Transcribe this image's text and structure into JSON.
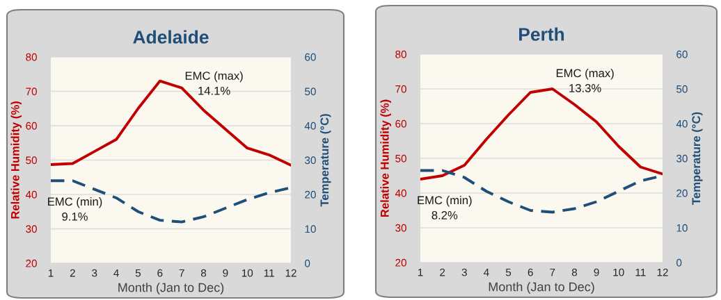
{
  "chart_data": [
    {
      "type": "line",
      "title": "Adelaide",
      "xlabel": "Month (Jan to Dec)",
      "ylabel": "Relative Humidity (%)",
      "y2label": "Temperature (°C)",
      "x": [
        1,
        2,
        3,
        4,
        5,
        6,
        7,
        8,
        9,
        10,
        11,
        12
      ],
      "series": [
        {
          "color": "#c00000",
          "values": [
            48.7,
            49,
            52.5,
            56,
            65,
            73,
            71,
            64.5,
            59,
            53.5,
            51.5,
            48.5
          ]
        },
        {
          "color": "#1f4e79",
          "axis": "y2",
          "line_style": "dashed",
          "values": [
            24,
            24,
            21.5,
            19,
            15,
            12.5,
            12,
            13.5,
            16,
            18.5,
            20.5,
            22
          ]
        }
      ],
      "xlim": [
        1,
        12
      ],
      "xticks": [
        1,
        2,
        3,
        4,
        5,
        6,
        7,
        8,
        9,
        10,
        11,
        12
      ],
      "ylim": [
        20,
        80
      ],
      "yticks": [
        20,
        30,
        40,
        50,
        60,
        70,
        80
      ],
      "y2lim": [
        0,
        60
      ],
      "y2ticks": [
        0,
        10,
        20,
        30,
        40,
        50,
        60
      ],
      "grid": "y",
      "line_style": "solid",
      "marker": "none",
      "annotations": [
        "EMC (max)\n14.1%",
        "EMC (min)\n9.1%"
      ]
    },
    {
      "type": "line",
      "title": "Perth",
      "xlabel": "Month (Jan to Dec)",
      "ylabel": "Relative Humidity (%)",
      "y2label": "Temperature (°C)",
      "x": [
        1,
        2,
        3,
        4,
        5,
        6,
        7,
        8,
        9,
        10,
        11,
        12
      ],
      "series": [
        {
          "color": "#c00000",
          "values": [
            44,
            45,
            48,
            55.5,
            62.5,
            69,
            70,
            65.5,
            60.5,
            53.5,
            47.5,
            45.5
          ]
        },
        {
          "color": "#1f4e79",
          "axis": "y2",
          "line_style": "dashed",
          "values": [
            26.5,
            26.5,
            24.5,
            20.5,
            17.5,
            15,
            14.5,
            15.5,
            17.5,
            20.5,
            23.5,
            25
          ]
        }
      ],
      "xlim": [
        1,
        12
      ],
      "xticks": [
        1,
        2,
        3,
        4,
        5,
        6,
        7,
        8,
        9,
        10,
        11,
        12
      ],
      "ylim": [
        20,
        80
      ],
      "yticks": [
        20,
        30,
        40,
        50,
        60,
        70,
        80
      ],
      "y2lim": [
        0,
        60
      ],
      "y2ticks": [
        0,
        10,
        20,
        30,
        40,
        50,
        60
      ],
      "grid": "y",
      "line_style": "solid",
      "marker": "none",
      "annotations": [
        "EMC (max)\n13.3%",
        "EMC (min)\n8.2%"
      ]
    }
  ]
}
